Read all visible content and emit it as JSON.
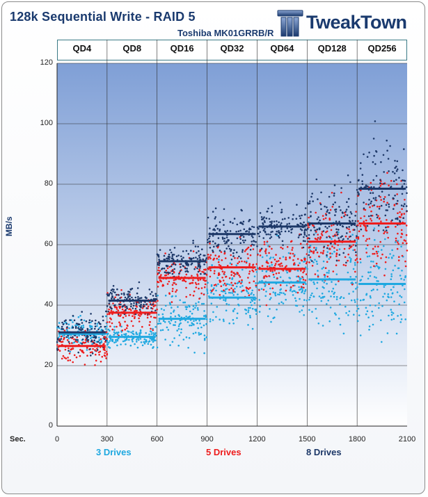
{
  "title": "128k Sequential Write - RAID 5",
  "subtitle": "Toshiba MK01GRRB/R",
  "logo_text": "TweakTown",
  "colors": {
    "title": "#1a3a6e",
    "plot_top": "#7f9fd6",
    "plot_bottom": "#ffffff",
    "grid": "#2b2b2b",
    "drives3": "#1fa8e0",
    "drives5": "#ee1c1c",
    "drives8": "#1d3868"
  },
  "chart_data": {
    "type": "scatter",
    "title": "128k Sequential Write - RAID 5",
    "subtitle": "Toshiba MK01GRRB/R",
    "xlabel": "Sec.",
    "ylabel": "MB/s",
    "xlim": [
      0,
      2100
    ],
    "ylim": [
      0,
      120
    ],
    "xticks": [
      0,
      300,
      600,
      900,
      1200,
      1500,
      1800,
      2100
    ],
    "yticks": [
      0,
      20,
      40,
      60,
      80,
      100,
      120
    ],
    "grid": true,
    "legend_placement": "bottom",
    "segments": [
      {
        "label": "QD4",
        "x": [
          0,
          300
        ]
      },
      {
        "label": "QD8",
        "x": [
          300,
          600
        ]
      },
      {
        "label": "QD16",
        "x": [
          600,
          900
        ]
      },
      {
        "label": "QD32",
        "x": [
          900,
          1200
        ]
      },
      {
        "label": "QD64",
        "x": [
          1200,
          1500
        ]
      },
      {
        "label": "QD128",
        "x": [
          1500,
          1800
        ]
      },
      {
        "label": "QD256",
        "x": [
          1800,
          2100
        ]
      }
    ],
    "series": [
      {
        "name": "3 Drives",
        "color": "#1fa8e0",
        "averages": [
          30.5,
          29.5,
          35.5,
          42.5,
          47.5,
          48.5,
          47.0
        ],
        "spread": [
          [
            22,
            38
          ],
          [
            25,
            35
          ],
          [
            22,
            50
          ],
          [
            26,
            58
          ],
          [
            25,
            64
          ],
          [
            22,
            70
          ],
          [
            19,
            70
          ]
        ]
      },
      {
        "name": "5 Drives",
        "color": "#ee1c1c",
        "averages": [
          26.5,
          37.5,
          49.0,
          52.5,
          52.0,
          61.0,
          67.0
        ],
        "spread": [
          [
            18,
            37
          ],
          [
            27,
            45
          ],
          [
            38,
            58
          ],
          [
            40,
            66
          ],
          [
            40,
            69
          ],
          [
            44,
            80
          ],
          [
            46,
            99
          ]
        ]
      },
      {
        "name": "8 Drives",
        "color": "#1d3868",
        "averages": [
          31.0,
          41.5,
          54.5,
          63.5,
          66.0,
          67.0,
          78.5
        ],
        "spread": [
          [
            19,
            38
          ],
          [
            37,
            51
          ],
          [
            48,
            63
          ],
          [
            52,
            76
          ],
          [
            55,
            75
          ],
          [
            53,
            90
          ],
          [
            58,
            105
          ]
        ]
      }
    ]
  }
}
